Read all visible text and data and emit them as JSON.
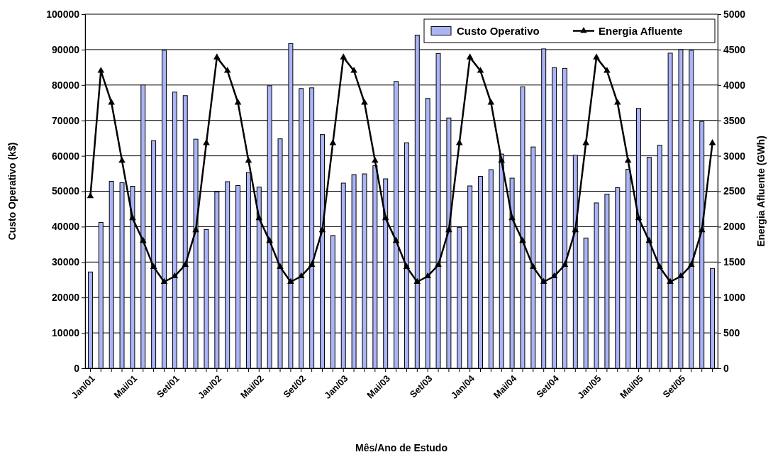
{
  "chart_data": {
    "type": "bar",
    "xlabel": "Mês/Ano de Estudo",
    "ylabel": "Custo Operativo (k$)",
    "y2label": "Energia Afluente (GWh)",
    "categories": [
      "Jan/01",
      null,
      null,
      null,
      "Mai/01",
      null,
      null,
      null,
      "Set/01",
      null,
      null,
      null,
      "Jan/02",
      null,
      null,
      null,
      "Mai/02",
      null,
      null,
      null,
      "Set/02",
      null,
      null,
      null,
      "Jan/03",
      null,
      null,
      null,
      "Mai/03",
      null,
      null,
      null,
      "Set/03",
      null,
      null,
      null,
      "Jan/04",
      null,
      null,
      null,
      "Mai/04",
      null,
      null,
      null,
      "Set/04",
      null,
      null,
      null,
      "Jan/05",
      null,
      null,
      null,
      "Mai/05",
      null,
      null,
      null,
      "Set/05",
      null,
      null,
      null
    ],
    "series": [
      {
        "name": "Custo Operativo",
        "color": "#aab4f6",
        "values": [
          27200,
          41200,
          52800,
          52400,
          51400,
          80000,
          64300,
          89800,
          78000,
          77000,
          64700,
          39200,
          49800,
          52700,
          51600,
          55300,
          51200,
          79800,
          64800,
          91700,
          79000,
          79200,
          66000,
          37500,
          52300,
          54700,
          54900,
          57200,
          53500,
          81000,
          63700,
          94100,
          76200,
          88900,
          70700,
          39800,
          51500,
          54200,
          56100,
          60500,
          53700,
          79500,
          62500,
          90200,
          84900,
          84700,
          60200,
          36800,
          46700,
          49200,
          51000,
          56200,
          73400,
          59600,
          63000,
          89000,
          90000,
          89800,
          69700,
          28200
        ]
      },
      {
        "name": "Energia Afluente",
        "type": "line",
        "axis": "y2",
        "color": "#000000",
        "marker": "triangle",
        "values": [
          2430,
          4200,
          3750,
          2930,
          2120,
          1800,
          1430,
          1220,
          1300,
          1460,
          1950,
          3180,
          4390,
          4200,
          3750,
          2930,
          2120,
          1800,
          1430,
          1220,
          1300,
          1460,
          1950,
          3180,
          4390,
          4200,
          3750,
          2930,
          2120,
          1800,
          1430,
          1220,
          1300,
          1460,
          1950,
          3180,
          4390,
          4200,
          3750,
          2930,
          2120,
          1800,
          1430,
          1220,
          1300,
          1460,
          1950,
          3180,
          4390,
          4200,
          3750,
          2930,
          2120,
          1800,
          1430,
          1220,
          1300,
          1460,
          1950,
          3180
        ]
      }
    ],
    "ylim": [
      0,
      100000
    ],
    "yticks": [
      0,
      10000,
      20000,
      30000,
      40000,
      50000,
      60000,
      70000,
      80000,
      90000,
      100000
    ],
    "y2lim": [
      0,
      5000
    ],
    "y2ticks": [
      0,
      500,
      1000,
      1500,
      2000,
      2500,
      3000,
      3500,
      4000,
      4500,
      5000
    ],
    "grid": "y",
    "legend": "top right"
  }
}
